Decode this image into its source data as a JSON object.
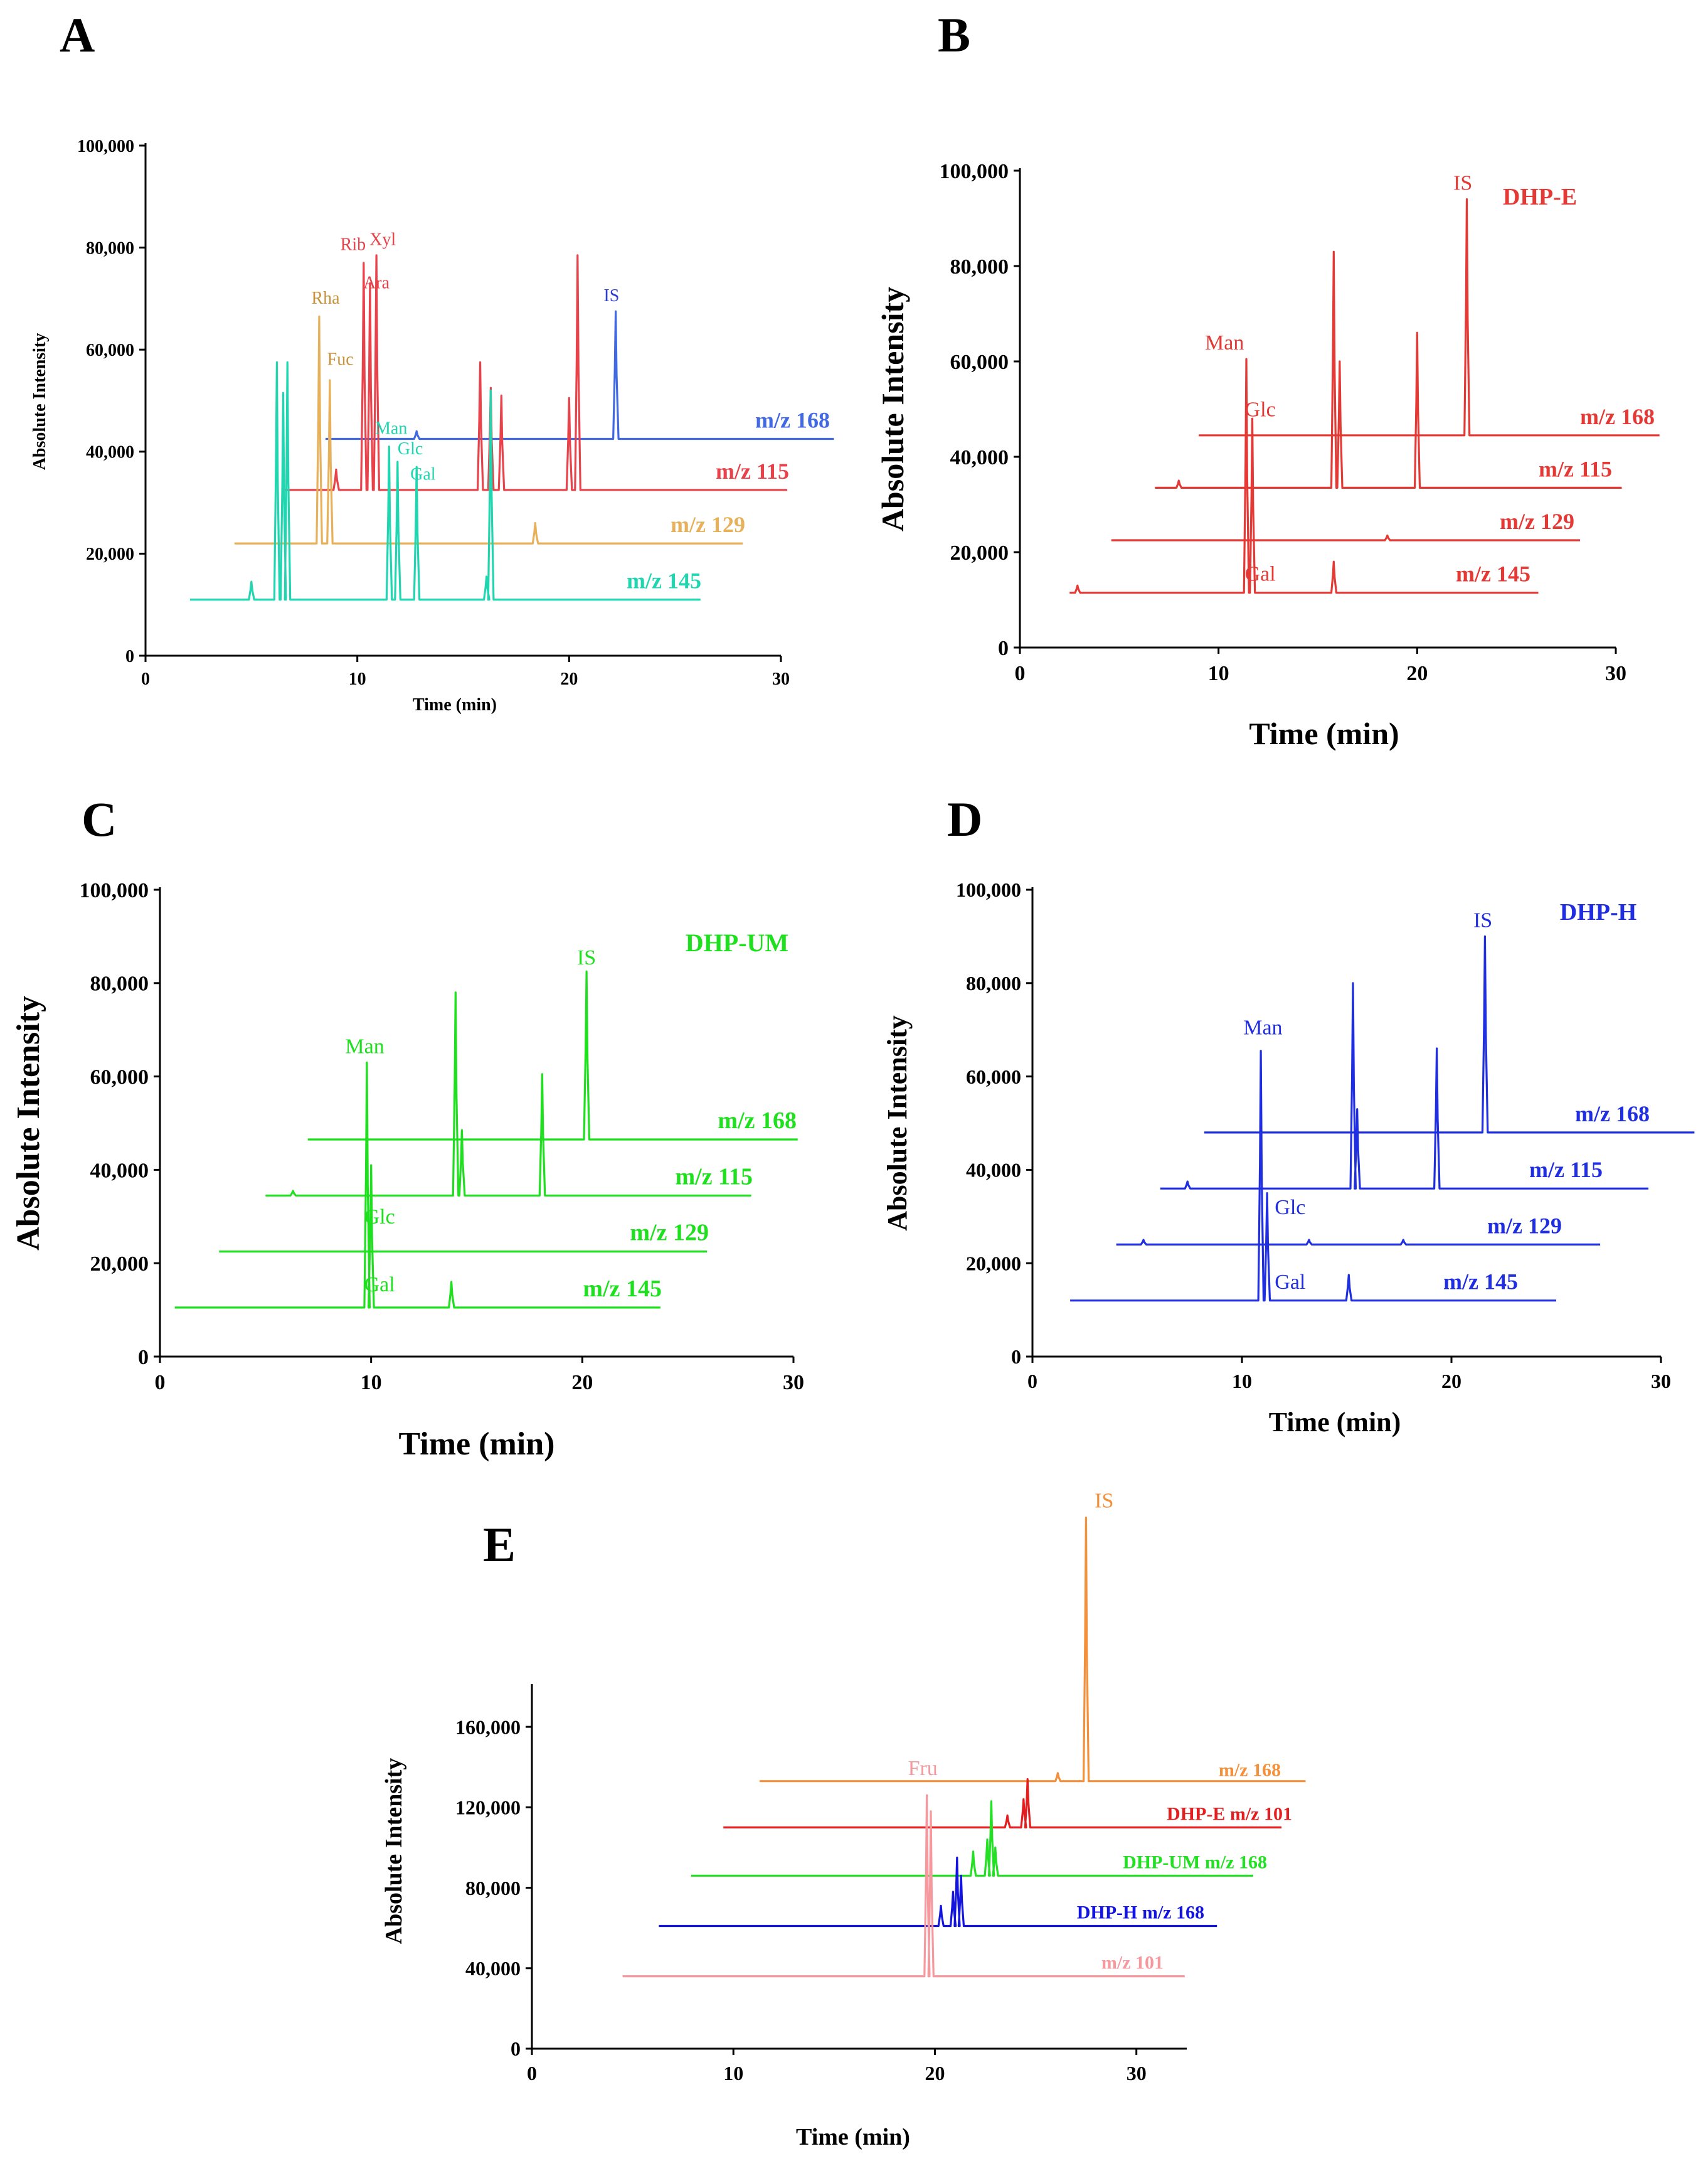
{
  "chart_data": [
    {
      "panel": "A",
      "type": "line",
      "title": "",
      "xlabel": "Time (min)",
      "ylabel": "Absolute Intensity",
      "xlim": [
        0,
        30
      ],
      "ylim": [
        0,
        100000
      ],
      "xticks": [
        "0",
        "10",
        "20",
        "30"
      ],
      "yticks": [
        "0",
        "20,000",
        "40,000",
        "60,000",
        "80,000",
        "100,000"
      ],
      "series": [
        {
          "name": "m/z 168",
          "color": "#4169e1",
          "baseline": 42500,
          "x_start": 8.5,
          "x_end": 32.5,
          "peaks": [
            [
              12.8,
              44000
            ],
            [
              22.2,
              67500
            ]
          ]
        },
        {
          "name": "m/z 115",
          "color": "#e8424a",
          "baseline": 32500,
          "x_start": 6.5,
          "x_end": 30.3,
          "peaks": [
            [
              9.0,
              36500
            ],
            [
              10.3,
              77000
            ],
            [
              10.6,
              73000
            ],
            [
              10.9,
              78500
            ],
            [
              15.8,
              57500
            ],
            [
              16.3,
              52500
            ],
            [
              16.8,
              51000
            ],
            [
              20.0,
              50500
            ],
            [
              20.4,
              78500
            ]
          ]
        },
        {
          "name": "m/z 129",
          "color": "#e6b15a",
          "baseline": 22000,
          "x_start": 4.2,
          "x_end": 28.2,
          "peaks": [
            [
              8.2,
              66500
            ],
            [
              8.7,
              54000
            ],
            [
              18.4,
              26000
            ]
          ]
        },
        {
          "name": "m/z 145",
          "color": "#1fd6b0",
          "baseline": 11000,
          "x_start": 2.1,
          "x_end": 26.2,
          "peaks": [
            [
              5.0,
              14500
            ],
            [
              6.2,
              57500
            ],
            [
              6.5,
              51500
            ],
            [
              6.7,
              57500
            ],
            [
              11.5,
              41000
            ],
            [
              11.9,
              38000
            ],
            [
              12.8,
              37000
            ],
            [
              16.1,
              15500
            ],
            [
              16.3,
              52000
            ]
          ]
        }
      ],
      "annotations": [
        {
          "text": "Rib",
          "x": 9.8,
          "y": 79500,
          "color": "#e8424a"
        },
        {
          "text": "Xyl",
          "x": 11.2,
          "y": 80500,
          "color": "#e8424a"
        },
        {
          "text": "Ara",
          "x": 10.9,
          "y": 72000,
          "color": "#e8424a"
        },
        {
          "text": "Rha",
          "x": 8.5,
          "y": 69000,
          "color": "#c8923a"
        },
        {
          "text": "Fuc",
          "x": 9.2,
          "y": 57000,
          "color": "#c8923a"
        },
        {
          "text": "Man",
          "x": 11.6,
          "y": 43500,
          "color": "#1fd6b0"
        },
        {
          "text": "Glc",
          "x": 12.5,
          "y": 39500,
          "color": "#1fd6b0"
        },
        {
          "text": "Gal",
          "x": 13.1,
          "y": 34500,
          "color": "#1fd6b0"
        },
        {
          "text": "IS",
          "x": 22.0,
          "y": 69500,
          "color": "#2f3fd0"
        }
      ]
    },
    {
      "panel": "B",
      "type": "line",
      "title": "DHP-E",
      "xlabel": "Time (min)",
      "ylabel": "Absolute Intensity",
      "xlim": [
        0,
        30
      ],
      "ylim": [
        0,
        100000
      ],
      "xticks": [
        "0",
        "10",
        "20",
        "30"
      ],
      "yticks": [
        "0",
        "20,000",
        "40,000",
        "60,000",
        "80,000",
        "100,000"
      ],
      "series": [
        {
          "name": "m/z 168",
          "color": "#e53935",
          "baseline": 44500,
          "x_start": 9.0,
          "x_end": 32.2,
          "peaks": [
            [
              22.5,
              94000
            ]
          ]
        },
        {
          "name": "m/z 115",
          "color": "#e53935",
          "baseline": 33500,
          "x_start": 6.8,
          "x_end": 30.3,
          "peaks": [
            [
              8.0,
              35000
            ],
            [
              15.8,
              83000
            ],
            [
              16.1,
              60000
            ],
            [
              20.0,
              66000
            ]
          ]
        },
        {
          "name": "m/z 129",
          "color": "#e53935",
          "baseline": 22500,
          "x_start": 4.6,
          "x_end": 28.2,
          "peaks": [
            [
              18.5,
              23500
            ]
          ]
        },
        {
          "name": "m/z 145",
          "color": "#e53935",
          "baseline": 11500,
          "x_start": 2.5,
          "x_end": 26.1,
          "peaks": [
            [
              2.9,
              13000
            ],
            [
              11.4,
              60500
            ],
            [
              11.7,
              48000
            ],
            [
              15.8,
              18000
            ]
          ]
        }
      ],
      "annotations": [
        {
          "text": "Man",
          "x": 10.3,
          "y": 62500,
          "color": "#e53935"
        },
        {
          "text": "Glc",
          "x": 12.1,
          "y": 48500,
          "color": "#e53935"
        },
        {
          "text": "Gal",
          "x": 12.1,
          "y": 14000,
          "color": "#e53935"
        },
        {
          "text": "IS",
          "x": 22.3,
          "y": 96000,
          "color": "#e53935"
        }
      ]
    },
    {
      "panel": "C",
      "type": "line",
      "title": "DHP-UM",
      "xlabel": "Time (min)",
      "ylabel": "Absolute Intensity",
      "xlim": [
        0,
        30
      ],
      "ylim": [
        0,
        100000
      ],
      "xticks": [
        "0",
        "10",
        "20",
        "30"
      ],
      "yticks": [
        "0",
        "20,000",
        "40,000",
        "60,000",
        "80,000",
        "100,000"
      ],
      "series": [
        {
          "name": "m/z 168",
          "color": "#1ee01e",
          "baseline": 46500,
          "x_start": 7.0,
          "x_end": 30.2,
          "peaks": [
            [
              20.2,
              82500
            ]
          ]
        },
        {
          "name": "m/z 115",
          "color": "#1ee01e",
          "baseline": 34500,
          "x_start": 5.0,
          "x_end": 28.0,
          "peaks": [
            [
              6.3,
              35500
            ],
            [
              14.0,
              78000
            ],
            [
              14.3,
              48500
            ],
            [
              18.1,
              60500
            ]
          ]
        },
        {
          "name": "m/z 129",
          "color": "#1ee01e",
          "baseline": 22500,
          "x_start": 2.8,
          "x_end": 25.9,
          "peaks": []
        },
        {
          "name": "m/z 145",
          "color": "#1ee01e",
          "baseline": 10500,
          "x_start": 0.7,
          "x_end": 23.7,
          "peaks": [
            [
              9.8,
              63000
            ],
            [
              10.0,
              41000
            ],
            [
              13.8,
              16000
            ]
          ]
        }
      ],
      "annotations": [
        {
          "text": "Man",
          "x": 9.7,
          "y": 65000,
          "color": "#1ee01e"
        },
        {
          "text": "Glc",
          "x": 10.4,
          "y": 28500,
          "color": "#1ee01e"
        },
        {
          "text": "Gal",
          "x": 10.4,
          "y": 14000,
          "color": "#1ee01e"
        },
        {
          "text": "IS",
          "x": 20.2,
          "y": 84000,
          "color": "#1ee01e"
        }
      ]
    },
    {
      "panel": "D",
      "type": "line",
      "title": "DHP-H",
      "xlabel": "Time (min)",
      "ylabel": "Absolute Intensity",
      "xlim": [
        0,
        30
      ],
      "ylim": [
        0,
        100000
      ],
      "xticks": [
        "0",
        "10",
        "20",
        "30"
      ],
      "yticks": [
        "0",
        "20,000",
        "40,000",
        "60,000",
        "80,000",
        "100,000"
      ],
      "series": [
        {
          "name": "m/z 168",
          "color": "#1f2ee0",
          "baseline": 48000,
          "x_start": 8.2,
          "x_end": 31.6,
          "peaks": [
            [
              21.6,
              90000
            ]
          ]
        },
        {
          "name": "m/z 115",
          "color": "#1f2ee0",
          "baseline": 36000,
          "x_start": 6.1,
          "x_end": 29.4,
          "peaks": [
            [
              7.4,
              37500
            ],
            [
              15.3,
              80000
            ],
            [
              15.5,
              53000
            ],
            [
              19.3,
              66000
            ]
          ]
        },
        {
          "name": "m/z 129",
          "color": "#1f2ee0",
          "baseline": 24000,
          "x_start": 4.0,
          "x_end": 27.1,
          "peaks": [
            [
              5.3,
              25000
            ],
            [
              13.2,
              25000
            ],
            [
              17.7,
              25000
            ]
          ]
        },
        {
          "name": "m/z 145",
          "color": "#1f2ee0",
          "baseline": 12000,
          "x_start": 1.8,
          "x_end": 25.0,
          "peaks": [
            [
              10.9,
              65500
            ],
            [
              11.2,
              35000
            ],
            [
              15.1,
              17500
            ]
          ]
        }
      ],
      "annotations": [
        {
          "text": "Man",
          "x": 11.0,
          "y": 69000,
          "color": "#1f2ee0"
        },
        {
          "text": "Glc",
          "x": 12.3,
          "y": 30500,
          "color": "#1f2ee0"
        },
        {
          "text": "Gal",
          "x": 12.3,
          "y": 14500,
          "color": "#1f2ee0"
        },
        {
          "text": "IS",
          "x": 21.5,
          "y": 92000,
          "color": "#1f2ee0"
        }
      ]
    },
    {
      "panel": "E",
      "type": "line",
      "title": "",
      "xlabel": "Time (min)",
      "ylabel": "Absolute Intensity",
      "xlim": [
        0,
        32.5
      ],
      "ylim": [
        0,
        180000
      ],
      "xticks": [
        "0",
        "10",
        "20",
        "30"
      ],
      "yticks": [
        "0",
        "40,000",
        "80,000",
        "120,000",
        "160,000"
      ],
      "series": [
        {
          "name": "m/z 168",
          "color": "#f4903a",
          "baseline": 133000,
          "x_start": 11.3,
          "x_end": 38.4,
          "peaks": [
            [
              26.1,
              137000
            ],
            [
              27.5,
              264000
            ]
          ]
        },
        {
          "name": "DHP-E m/z 101",
          "color": "#e41e1e",
          "baseline": 110000,
          "x_start": 9.5,
          "x_end": 37.2,
          "peaks": [
            [
              23.6,
              116000
            ],
            [
              24.4,
              124000
            ],
            [
              24.6,
              134000
            ]
          ]
        },
        {
          "name": "DHP-UM m/z 168",
          "color": "#22e022",
          "baseline": 86000,
          "x_start": 7.9,
          "x_end": 35.8,
          "peaks": [
            [
              21.9,
              98000
            ],
            [
              22.6,
              104000
            ],
            [
              22.8,
              123000
            ],
            [
              23.0,
              100000
            ]
          ]
        },
        {
          "name": "DHP-H m/z 168",
          "color": "#1414e0",
          "baseline": 61000,
          "x_start": 6.3,
          "x_end": 34.0,
          "peaks": [
            [
              20.3,
              71000
            ],
            [
              20.9,
              78000
            ],
            [
              21.1,
              95000
            ],
            [
              21.3,
              86000
            ]
          ]
        },
        {
          "name": "m/z 101",
          "color": "#f5999e",
          "baseline": 36000,
          "x_start": 4.5,
          "x_end": 32.4,
          "peaks": [
            [
              19.6,
              126000
            ],
            [
              19.8,
              118000
            ]
          ]
        }
      ],
      "annotations": [
        {
          "text": "Fru",
          "x": 19.4,
          "y": 136000,
          "color": "#f5999e"
        },
        {
          "text": "IS",
          "x": 28.4,
          "y": 269000,
          "color": "#f4903a"
        }
      ]
    }
  ]
}
